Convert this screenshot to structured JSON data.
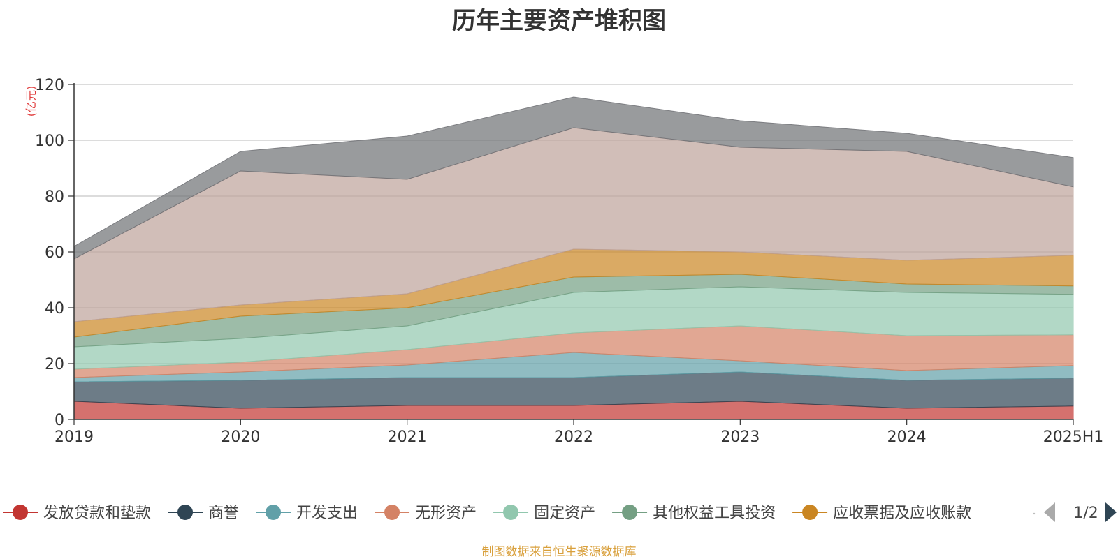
{
  "chart_data": {
    "type": "area",
    "stacked": true,
    "title": "历年主要资产堆积图",
    "ylabel": "(亿元)",
    "xlabel": "",
    "ylim": [
      0,
      120
    ],
    "yticks": [
      0,
      20,
      40,
      60,
      80,
      100,
      120
    ],
    "grid": true,
    "legend_position": "bottom",
    "categories": [
      "2019",
      "2020",
      "2021",
      "2022",
      "2023",
      "2024",
      "2025H1"
    ],
    "series": [
      {
        "name": "发放贷款和垫款",
        "color": "#c23531",
        "values": [
          6.5,
          4.0,
          5.0,
          5.0,
          6.5,
          4.0,
          4.8
        ]
      },
      {
        "name": "商誉",
        "color": "#2f4554",
        "values": [
          7.0,
          10.0,
          10.0,
          10.0,
          10.5,
          10.0,
          10.0
        ]
      },
      {
        "name": "开发支出",
        "color": "#61a0a8",
        "values": [
          1.5,
          3.0,
          4.5,
          9.0,
          4.0,
          3.5,
          4.5
        ]
      },
      {
        "name": "无形资产",
        "color": "#d48265",
        "values": [
          3.0,
          3.5,
          5.5,
          7.0,
          12.5,
          12.5,
          11.0
        ]
      },
      {
        "name": "固定资产",
        "color": "#91c7ae",
        "values": [
          8.0,
          8.5,
          8.5,
          14.5,
          14.0,
          15.5,
          14.5
        ]
      },
      {
        "name": "其他权益工具投资",
        "color": "#749f83",
        "values": [
          3.5,
          8.0,
          6.5,
          5.5,
          4.5,
          3.0,
          3.0
        ]
      },
      {
        "name": "应收票据及应收账款",
        "color": "#ca8622",
        "values": [
          5.5,
          4.0,
          5.0,
          10.0,
          8.0,
          8.5,
          11.0
        ]
      },
      {
        "name": "",
        "color": "#bda29a",
        "values": [
          22.5,
          48.0,
          41.0,
          43.5,
          37.5,
          39.0,
          24.5
        ]
      },
      {
        "name": "",
        "color": "#6e7074",
        "values": [
          4.5,
          7.0,
          15.5,
          11.0,
          9.5,
          6.5,
          10.5
        ]
      }
    ]
  },
  "legend": {
    "page_label": "1/2",
    "prev_icon": "triangle-left-icon",
    "next_icon": "triangle-right-icon"
  },
  "source_note": "制图数据来自恒生聚源数据库"
}
